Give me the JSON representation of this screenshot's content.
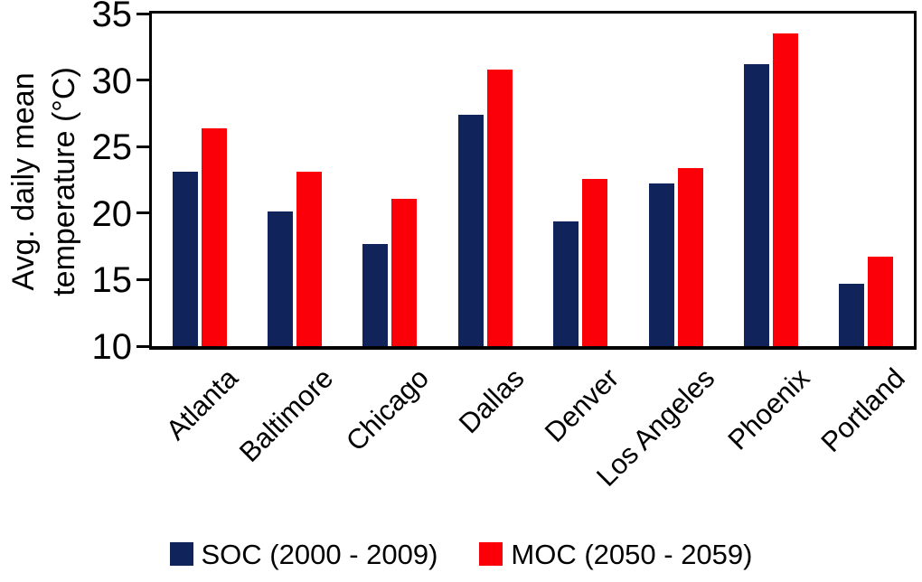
{
  "chart_data": {
    "type": "bar",
    "title": "",
    "ylabel": "Avg. daily mean temperature (°C)",
    "ylabel_lines": [
      "Avg. daily mean",
      "temperature (°C)"
    ],
    "xlabel": "",
    "ylim": [
      10,
      35
    ],
    "yticks": [
      35,
      30,
      25,
      20,
      15,
      10
    ],
    "grid": false,
    "legend_position": "bottom-center",
    "categories": [
      "Atlanta",
      "Baltimore",
      "Chicago",
      "Dallas",
      "Denver",
      "Los Angeles",
      "Phoenix",
      "Portland"
    ],
    "series": [
      {
        "name": "SOC (2000 - 2009)",
        "key": "soc",
        "color": "#11235b",
        "values": [
          23.1,
          20.1,
          17.7,
          27.4,
          19.4,
          22.2,
          31.2,
          14.7
        ]
      },
      {
        "name": "MOC (2050 - 2059)",
        "key": "moc",
        "color": "#fb0008",
        "values": [
          26.4,
          23.1,
          21.1,
          30.8,
          22.6,
          23.4,
          33.5,
          16.7
        ]
      }
    ],
    "axis_color": "#000000",
    "background_color": "#ffffff"
  }
}
